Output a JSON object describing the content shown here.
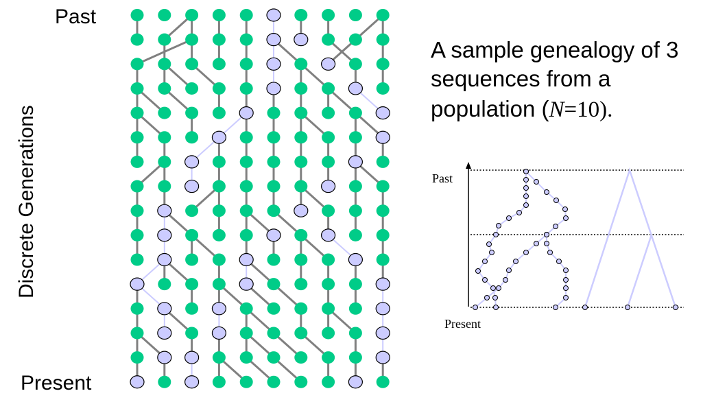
{
  "labels": {
    "past": "Past",
    "present": "Present",
    "y_axis": "Discrete Generations"
  },
  "description": {
    "line1": "A sample genealogy of 3",
    "line2": "sequences from a",
    "line3_prefix": "population (",
    "line3_var": "N",
    "line3_suffix": "=10)."
  },
  "inset": {
    "past": "Past",
    "present": "Present"
  },
  "colors": {
    "node_fill": "#00cc88",
    "lineage_fill": "#ccccff",
    "edge": "#808080",
    "lineage_edge": "#ccccff",
    "outline": "#000000"
  },
  "grid": {
    "generations": 15,
    "individuals": 10,
    "lineage_nodes_by_generation": [
      [
        5
      ],
      [
        5,
        6
      ],
      [
        5,
        7
      ],
      [
        5,
        8
      ],
      [
        4,
        9
      ],
      [
        3,
        9
      ],
      [
        2,
        8
      ],
      [
        2,
        7
      ],
      [
        1,
        6
      ],
      [
        1,
        5,
        7
      ],
      [
        1,
        4,
        8
      ],
      [
        0,
        4,
        9
      ],
      [
        1,
        3,
        9
      ],
      [
        1,
        3,
        9
      ],
      [
        1,
        2,
        9
      ],
      [
        0,
        2,
        8
      ]
    ]
  }
}
